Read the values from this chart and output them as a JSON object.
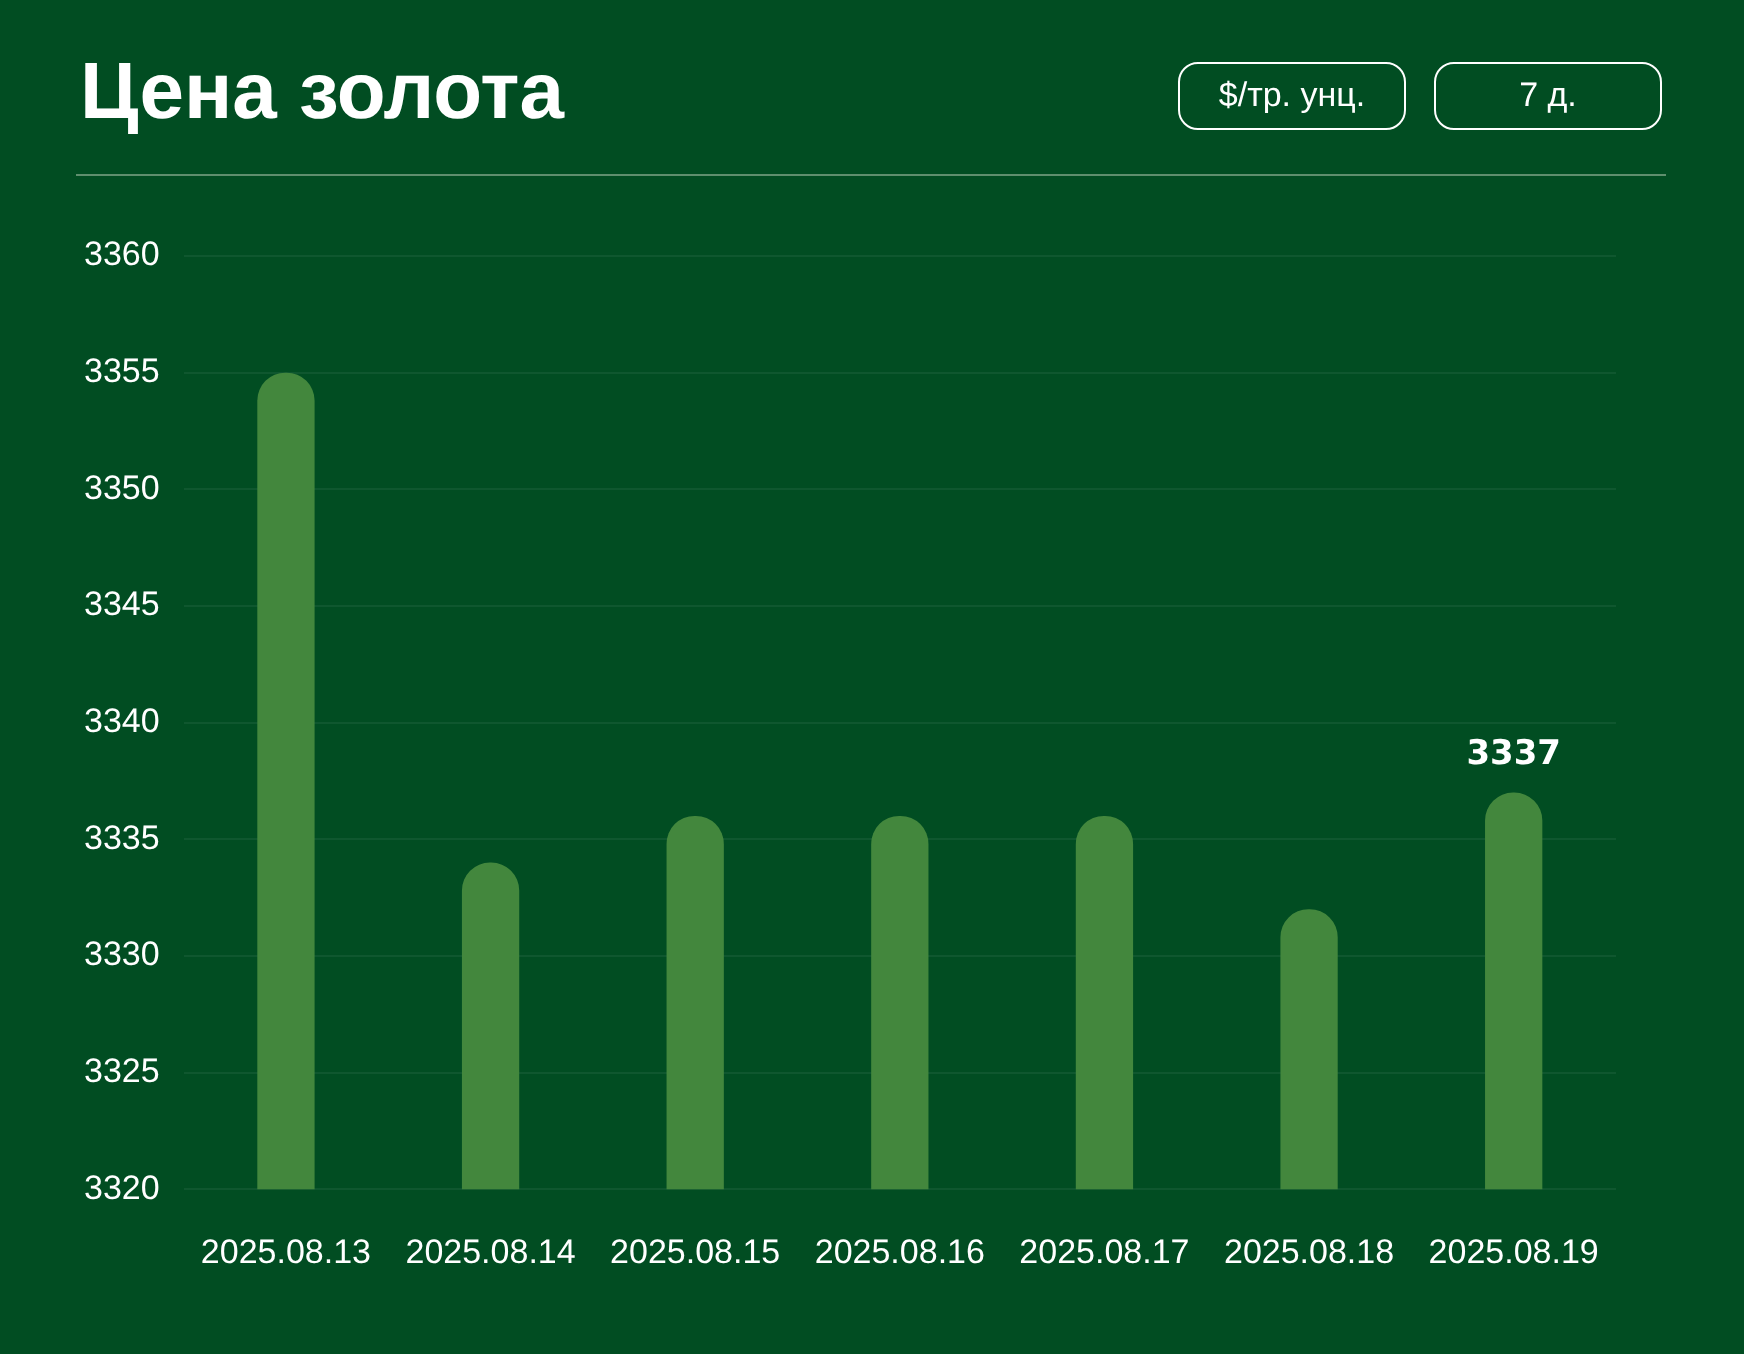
{
  "chart_data": {
    "type": "bar",
    "title": "Цена золота",
    "annotations": [
      "$/тр. унц.",
      "7 д."
    ],
    "categories": [
      "2025.08.13",
      "2025.08.14",
      "2025.08.15",
      "2025.08.16",
      "2025.08.17",
      "2025.08.18",
      "2025.08.19"
    ],
    "values": [
      3355,
      3334,
      3336,
      3336,
      3336,
      3332,
      3337
    ],
    "value_labels": [
      null,
      null,
      null,
      null,
      null,
      null,
      "3337"
    ],
    "color": "#43873d",
    "ylim": [
      3320,
      3360
    ],
    "yticks": [
      3320,
      3325,
      3330,
      3335,
      3340,
      3345,
      3350,
      3355,
      3360
    ],
    "grid": "y",
    "legend": false
  }
}
